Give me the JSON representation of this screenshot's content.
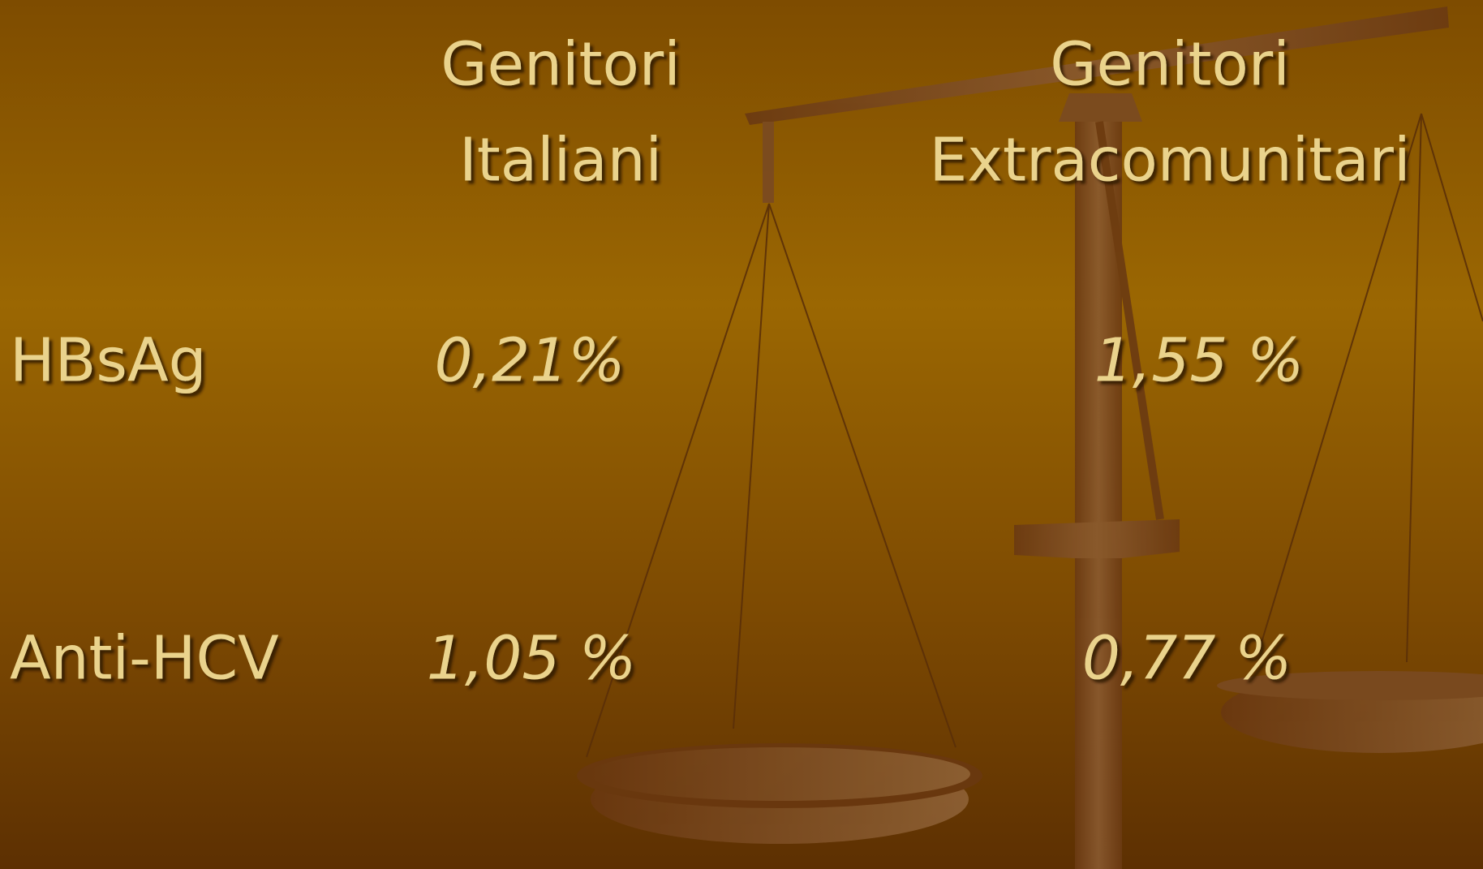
{
  "table": {
    "columns": [
      {
        "lines": [
          "Genitori",
          "Italiani"
        ]
      },
      {
        "lines": [
          "Genitori",
          "Extracomunitari"
        ]
      }
    ],
    "rows": [
      [
        "HBsAg",
        "0,21%",
        "1,55 %"
      ],
      [
        "Anti-HCV",
        "1,05 %",
        "0,77 %"
      ]
    ]
  }
}
